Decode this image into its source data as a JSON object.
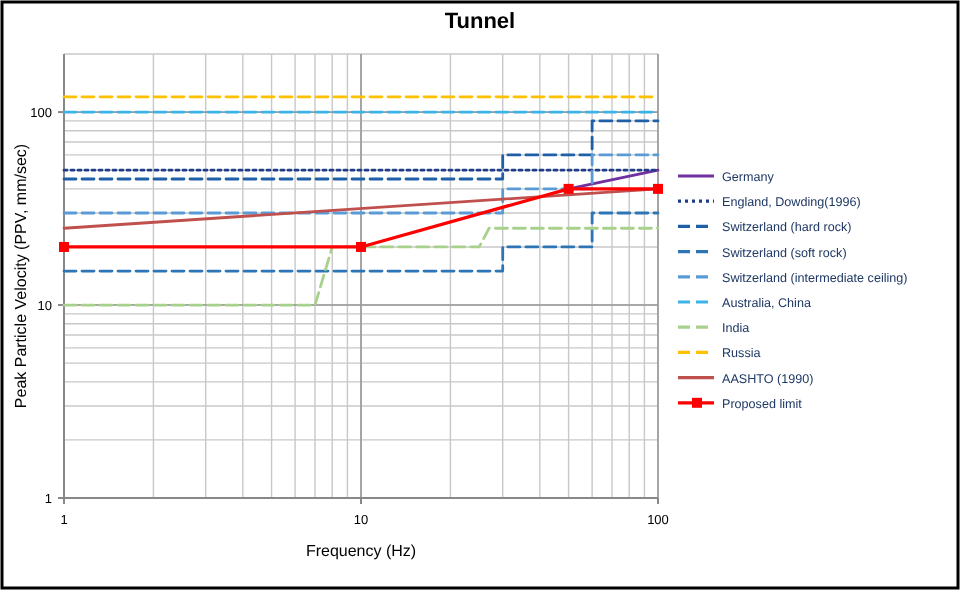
{
  "chart_data": {
    "type": "line",
    "title": "Tunnel",
    "xlabel": "Frequency (Hz)",
    "ylabel": "Peak Particle Velocity (PPV, mm/sec)",
    "log": "xy",
    "grid": true,
    "legend": "right",
    "xlim": [
      1,
      100
    ],
    "xticks": [
      1,
      10,
      100
    ],
    "ylim": [
      1,
      200
    ],
    "yticks": [
      1,
      10,
      100
    ],
    "series": [
      {
        "name": "Germany",
        "color": "#7030a0",
        "line_style": "solid",
        "x": [
          50,
          100
        ],
        "values": [
          40,
          50
        ]
      },
      {
        "name": "England, Dowding(1996)",
        "color": "#1f3c88",
        "line_style": "dotted",
        "x": [
          1,
          100
        ],
        "values": [
          50,
          50
        ]
      },
      {
        "name": "Switzerland (hard rock)",
        "color": "#1f5fa8",
        "line_style": "dashed",
        "x": [
          1,
          30,
          30,
          60,
          60,
          100
        ],
        "values": [
          45,
          45,
          60,
          60,
          90,
          90
        ]
      },
      {
        "name": "Switzerland (soft rock)",
        "color": "#2e75b6",
        "line_style": "dashed",
        "x": [
          1,
          30,
          30,
          60,
          60,
          100
        ],
        "values": [
          15,
          15,
          20,
          20,
          30,
          30
        ]
      },
      {
        "name": "Switzerland (intermediate ceiling)",
        "color": "#5b9bd5",
        "line_style": "dashed",
        "x": [
          1,
          30,
          30,
          60,
          60,
          100
        ],
        "values": [
          30,
          30,
          40,
          40,
          60,
          60
        ]
      },
      {
        "name": "Australia, China",
        "color": "#3cb4e6",
        "line_style": "dashed",
        "x": [
          1,
          100
        ],
        "values": [
          100,
          100
        ]
      },
      {
        "name": "India",
        "color": "#a9d18e",
        "line_style": "dashed",
        "x": [
          1,
          7,
          8,
          25,
          27,
          100
        ],
        "values": [
          10,
          10,
          20,
          20,
          25,
          25
        ]
      },
      {
        "name": "Russia",
        "color": "#ffc000",
        "line_style": "dashed",
        "x": [
          1,
          100
        ],
        "values": [
          120,
          120
        ]
      },
      {
        "name": "AASHTO (1990)",
        "color": "#c0504d",
        "line_style": "solid",
        "x": [
          1,
          100
        ],
        "values": [
          25,
          40
        ]
      },
      {
        "name": "Proposed limit",
        "color": "#ff0000",
        "line_style": "solid",
        "marker": "square",
        "x": [
          1,
          10,
          50,
          100
        ],
        "values": [
          20,
          20,
          40,
          40
        ]
      }
    ]
  }
}
